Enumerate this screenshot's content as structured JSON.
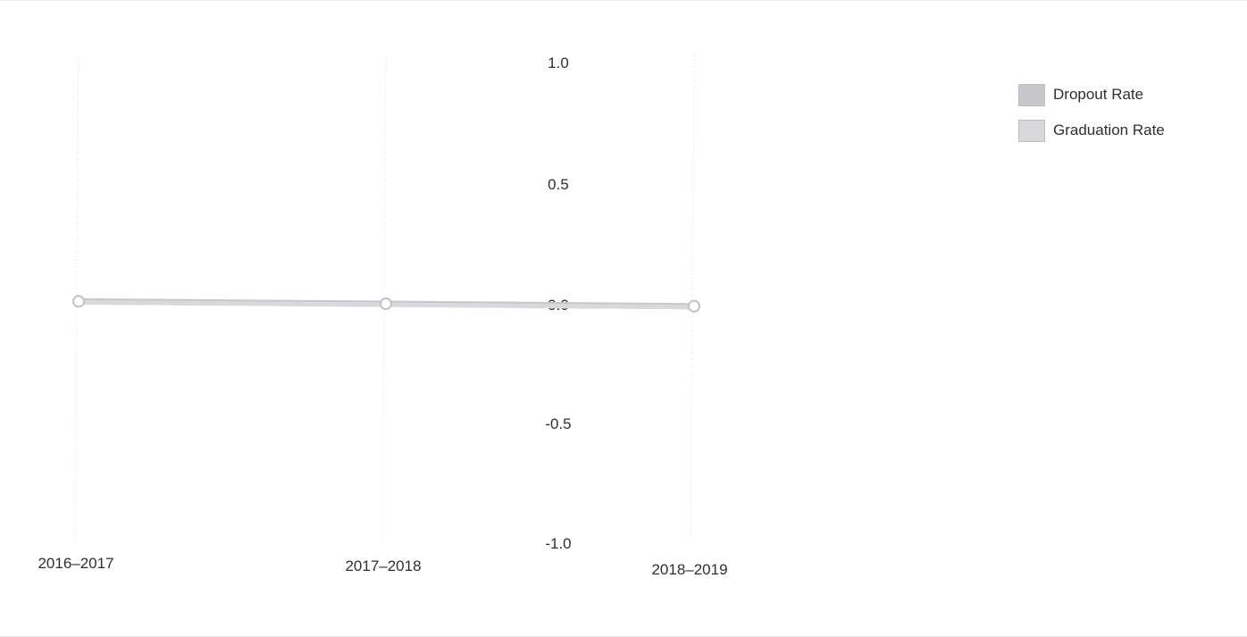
{
  "chart_data": {
    "type": "line",
    "categories": [
      "2016–2017",
      "2017–2018",
      "2018–2019"
    ],
    "series": [
      {
        "name": "Dropout Rate",
        "values": [
          0.01,
          0.0,
          -0.01
        ],
        "color": "#c8c8cc"
      },
      {
        "name": "Graduation Rate",
        "values": [
          0.01,
          0.0,
          -0.01
        ],
        "color": "#d9d9dc"
      }
    ],
    "yticks": [
      "1.0",
      "0.5",
      "0.0",
      "-0.5",
      "-1.0"
    ],
    "ylim": [
      -1.0,
      1.0
    ],
    "grid": true,
    "legend_position": "top-right",
    "colors": {
      "grid": "#ececec",
      "line": "#cfcfd3",
      "marker_fill": "#ffffff",
      "marker_stroke": "#c4c4c8",
      "text": "#2f2f2f"
    }
  }
}
